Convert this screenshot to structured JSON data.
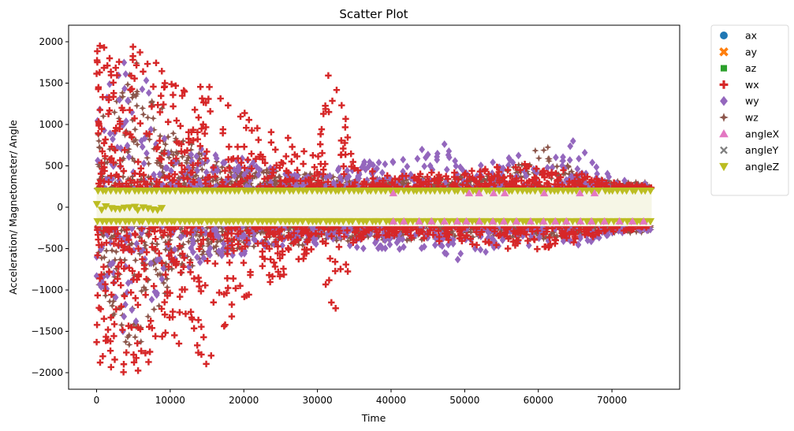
{
  "chart_data": {
    "type": "scatter",
    "title": "Scatter Plot",
    "xlabel": "Time",
    "ylabel": "Acceleration/ Magnetometer/ Angle",
    "xlim": [
      -3800,
      79200
    ],
    "ylim": [
      -2200,
      2200
    ],
    "x_ticks": [
      0,
      10000,
      20000,
      30000,
      40000,
      50000,
      60000,
      70000
    ],
    "y_ticks": [
      -2000,
      -1500,
      -1000,
      -500,
      0,
      500,
      1000,
      1500,
      2000
    ],
    "x_range": [
      0,
      75400
    ],
    "grid": false,
    "legend_position": "outside-right",
    "series": [
      {
        "name": "ax",
        "color": "#1f77b4",
        "marker": "circle"
      },
      {
        "name": "ay",
        "color": "#ff7f0e",
        "marker": "x"
      },
      {
        "name": "az",
        "color": "#2ca02c",
        "marker": "square"
      },
      {
        "name": "wx",
        "color": "#d62728",
        "marker": "plus"
      },
      {
        "name": "wy",
        "color": "#9467bd",
        "marker": "diamond"
      },
      {
        "name": "wz",
        "color": "#8c564b",
        "marker": "star"
      },
      {
        "name": "angleX",
        "color": "#e377c2",
        "marker": "triangle-up"
      },
      {
        "name": "angleY",
        "color": "#7f7f7f",
        "marker": "x-thin"
      },
      {
        "name": "angleZ",
        "color": "#bcbd22",
        "marker": "triangle-down"
      }
    ],
    "envelopes": [
      {
        "series": "wx",
        "knots_x": [
          0,
          3000,
          6000,
          10000,
          15000,
          20000,
          25000,
          30000,
          32000,
          33500,
          35000,
          40000,
          50000,
          60000,
          70000,
          75400
        ],
        "upper": [
          2000,
          1950,
          2000,
          1700,
          1500,
          1150,
          900,
          600,
          2000,
          1250,
          500,
          380,
          450,
          550,
          300,
          250
        ],
        "lower": [
          -2000,
          -2000,
          -2000,
          -1600,
          -1950,
          -1100,
          -850,
          -500,
          -1330,
          -1100,
          -400,
          -350,
          -450,
          -550,
          -300,
          -250
        ]
      },
      {
        "series": "wy",
        "knots_x": [
          0,
          3000,
          6000,
          10000,
          15000,
          20000,
          25000,
          30000,
          35000,
          40000,
          47000,
          50000,
          56000,
          60000,
          62000,
          66000,
          70000,
          75400
        ],
        "upper": [
          1200,
          1850,
          1800,
          900,
          700,
          600,
          450,
          450,
          550,
          550,
          800,
          600,
          700,
          500,
          650,
          880,
          350,
          300
        ],
        "lower": [
          -900,
          -1500,
          -1600,
          -900,
          -650,
          -600,
          -500,
          -450,
          -500,
          -500,
          -550,
          -700,
          -400,
          -500,
          -450,
          -500,
          -350,
          -300
        ]
      },
      {
        "series": "wz",
        "knots_x": [
          0,
          3000,
          6000,
          10000,
          15000,
          20000,
          30000,
          35000,
          45000,
          55000,
          61000,
          65000,
          70000,
          75400
        ],
        "upper": [
          1000,
          1400,
          1850,
          1000,
          600,
          500,
          400,
          350,
          350,
          400,
          800,
          400,
          320,
          300
        ],
        "lower": [
          -1000,
          -1600,
          -1800,
          -900,
          -600,
          -500,
          -450,
          -400,
          -400,
          -350,
          -400,
          -350,
          -320,
          -300
        ]
      }
    ],
    "band": {
      "ymin": -230,
      "ymax": 230,
      "color": "#f6f6e6"
    },
    "angle_markers": {
      "upper_y": 200,
      "lower_y": -170,
      "mid_spread": 40
    }
  }
}
